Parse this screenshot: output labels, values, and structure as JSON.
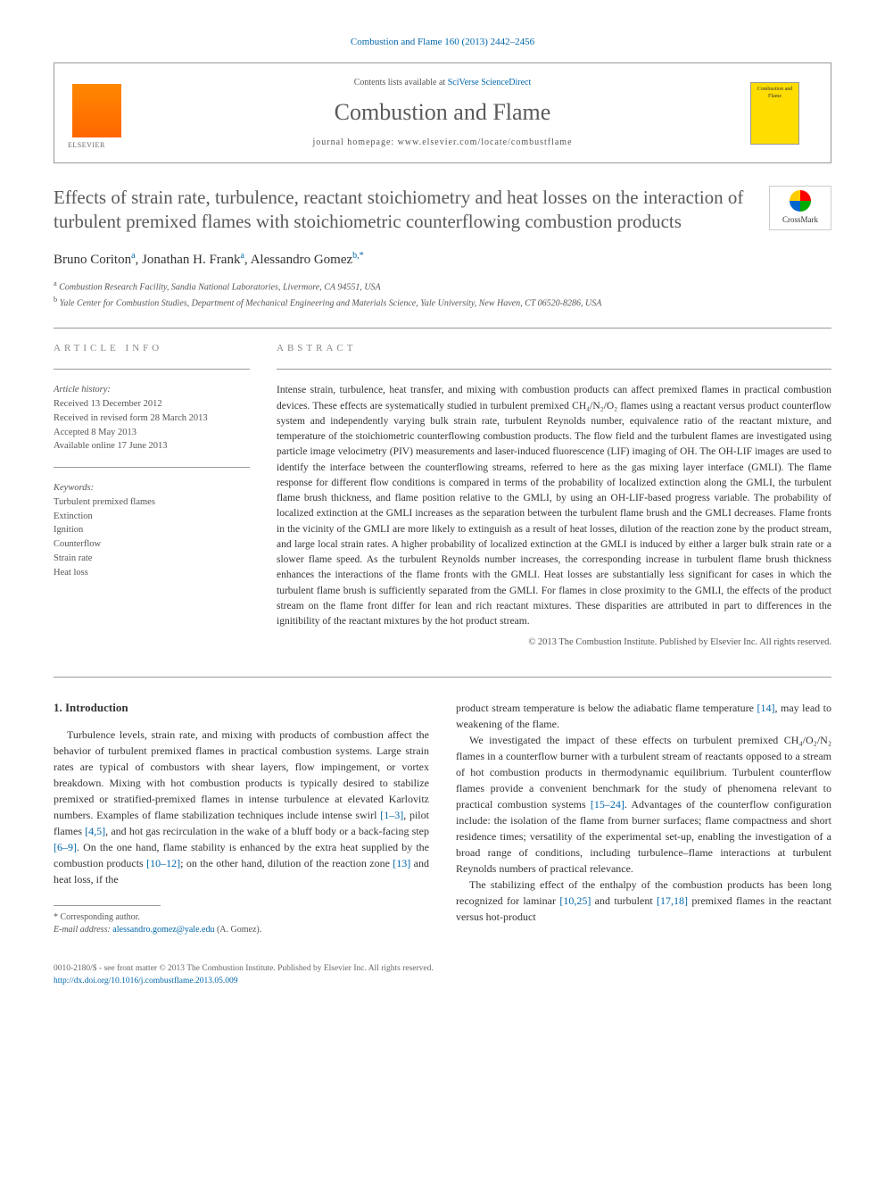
{
  "citation": "Combustion and Flame 160 (2013) 2442–2456",
  "header": {
    "contents_line_prefix": "Contents lists available at ",
    "contents_link": "SciVerse ScienceDirect",
    "journal_title": "Combustion and Flame",
    "homepage_prefix": "journal homepage: ",
    "homepage_url": "www.elsevier.com/locate/combustflame",
    "cover_text": "Combustion and Flame"
  },
  "crossmark_label": "CrossMark",
  "title": "Effects of strain rate, turbulence, reactant stoichiometry and heat losses on the interaction of turbulent premixed flames with stoichiometric counterflowing combustion products",
  "authors_html": "Bruno Coriton",
  "authors": [
    {
      "name": "Bruno Coriton",
      "sup": "a"
    },
    {
      "name": "Jonathan H. Frank",
      "sup": "a"
    },
    {
      "name": "Alessandro Gomez",
      "sup": "b,*"
    }
  ],
  "affiliations": [
    {
      "sup": "a",
      "text": "Combustion Research Facility, Sandia National Laboratories, Livermore, CA 94551, USA"
    },
    {
      "sup": "b",
      "text": "Yale Center for Combustion Studies, Department of Mechanical Engineering and Materials Science, Yale University, New Haven, CT 06520-8286, USA"
    }
  ],
  "info": {
    "heading": "article info",
    "history_label": "Article history:",
    "history": [
      "Received 13 December 2012",
      "Received in revised form 28 March 2013",
      "Accepted 8 May 2013",
      "Available online 17 June 2013"
    ],
    "keywords_label": "Keywords:",
    "keywords": [
      "Turbulent premixed flames",
      "Extinction",
      "Ignition",
      "Counterflow",
      "Strain rate",
      "Heat loss"
    ]
  },
  "abstract": {
    "heading": "abstract",
    "text": "Intense strain, turbulence, heat transfer, and mixing with combustion products can affect premixed flames in practical combustion devices. These effects are systematically studied in turbulent premixed CH₄/N₂/O₂ flames using a reactant versus product counterflow system and independently varying bulk strain rate, turbulent Reynolds number, equivalence ratio of the reactant mixture, and temperature of the stoichiometric counterflowing combustion products. The flow field and the turbulent flames are investigated using particle image velocimetry (PIV) measurements and laser-induced fluorescence (LIF) imaging of OH. The OH-LIF images are used to identify the interface between the counterflowing streams, referred to here as the gas mixing layer interface (GMLI). The flame response for different flow conditions is compared in terms of the probability of localized extinction along the GMLI, the turbulent flame brush thickness, and flame position relative to the GMLI, by using an OH-LIF-based progress variable. The probability of localized extinction at the GMLI increases as the separation between the turbulent flame brush and the GMLI decreases. Flame fronts in the vicinity of the GMLI are more likely to extinguish as a result of heat losses, dilution of the reaction zone by the product stream, and large local strain rates. A higher probability of localized extinction at the GMLI is induced by either a larger bulk strain rate or a slower flame speed. As the turbulent Reynolds number increases, the corresponding increase in turbulent flame brush thickness enhances the interactions of the flame fronts with the GMLI. Heat losses are substantially less significant for cases in which the turbulent flame brush is sufficiently separated from the GMLI. For flames in close proximity to the GMLI, the effects of the product stream on the flame front differ for lean and rich reactant mixtures. These disparities are attributed in part to differences in the ignitibility of the reactant mixtures by the hot product stream.",
    "copyright": "© 2013 The Combustion Institute. Published by Elsevier Inc. All rights reserved."
  },
  "body": {
    "section_heading": "1. Introduction",
    "col1": {
      "p1_pre": "Turbulence levels, strain rate, and mixing with products of combustion affect the behavior of turbulent premixed flames in practical combustion systems. Large strain rates are typical of combustors with shear layers, flow impingement, or vortex breakdown. Mixing with hot combustion products is typically desired to stabilize premixed or stratified-premixed flames in intense turbulence at elevated Karlovitz numbers. Examples of flame stabilization techniques include intense swirl ",
      "r1": "[1–3]",
      "p1_mid1": ", pilot flames ",
      "r2": "[4,5]",
      "p1_mid2": ", and hot gas recirculation in the wake of a bluff body or a back-facing step ",
      "r3": "[6–9]",
      "p1_mid3": ". On the one hand, flame stability is enhanced by the extra heat supplied by the combustion products ",
      "r4": "[10–12]",
      "p1_mid4": "; on the other hand, dilution of the reaction zone ",
      "r5": "[13]",
      "p1_post": " and heat loss, if the"
    },
    "col2": {
      "p1_pre": "product stream temperature is below the adiabatic flame temperature ",
      "r1": "[14]",
      "p1_post": ", may lead to weakening of the flame.",
      "p2_pre": "We investigated the impact of these effects on turbulent premixed CH₄/O₂/N₂ flames in a counterflow burner with a turbulent stream of reactants opposed to a stream of hot combustion products in thermodynamic equilibrium. Turbulent counterflow flames provide a convenient benchmark for the study of phenomena relevant to practical combustion systems ",
      "r2": "[15–24]",
      "p2_post": ". Advantages of the counterflow configuration include: the isolation of the flame from burner surfaces; flame compactness and short residence times; versatility of the experimental set-up, enabling the investigation of a broad range of conditions, including turbulence–flame interactions at turbulent Reynolds numbers of practical relevance.",
      "p3_pre": "The stabilizing effect of the enthalpy of the combustion products has been long recognized for laminar ",
      "r3": "[10,25]",
      "p3_mid": " and turbulent ",
      "r4": "[17,18]",
      "p3_post": " premixed flames in the reactant versus hot-product"
    }
  },
  "footnote": {
    "corresponding": "* Corresponding author.",
    "email_label": "E-mail address: ",
    "email": "alessandro.gomez@yale.edu",
    "email_attribution": " (A. Gomez)."
  },
  "bottom": {
    "line1": "0010-2180/$ - see front matter © 2013 The Combustion Institute. Published by Elsevier Inc. All rights reserved.",
    "doi": "http://dx.doi.org/10.1016/j.combustflame.2013.05.009"
  },
  "colors": {
    "link": "#0066aa",
    "heading_gray": "#5a5a5a",
    "text": "#333333",
    "muted": "#555555",
    "rule": "#999999"
  }
}
